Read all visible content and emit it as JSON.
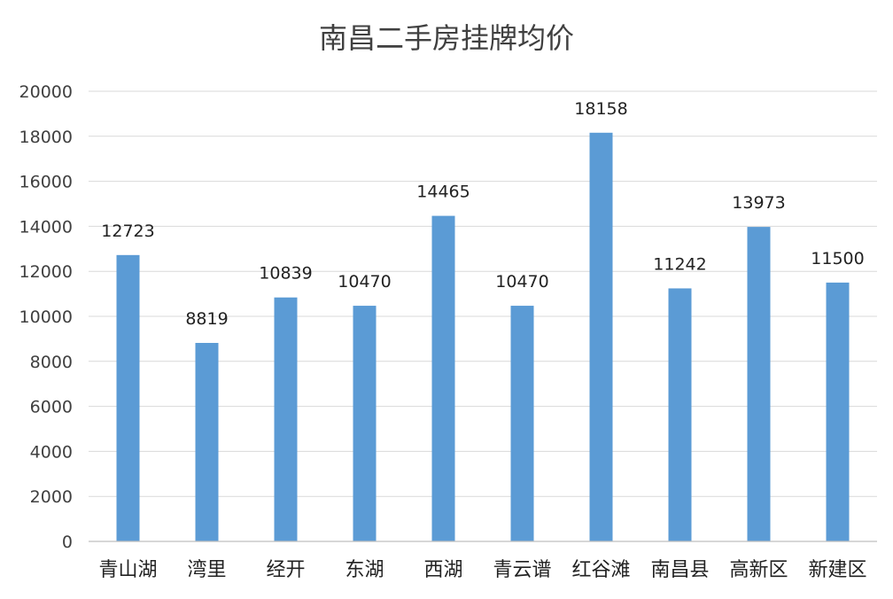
{
  "chart_data": {
    "type": "bar",
    "title": "南昌二手房挂牌均价",
    "xlabel": "",
    "ylabel": "",
    "categories": [
      "青山湖",
      "湾里",
      "经开",
      "东湖",
      "西湖",
      "青云谱",
      "红谷滩",
      "南昌县",
      "高新区",
      "新建区"
    ],
    "values": [
      12723,
      8819,
      10839,
      10470,
      14465,
      10470,
      18158,
      11242,
      13973,
      11500
    ],
    "ylim": [
      0,
      20000
    ],
    "yticks": [
      0,
      2000,
      4000,
      6000,
      8000,
      10000,
      12000,
      14000,
      16000,
      18000,
      20000
    ],
    "grid": true,
    "legend": "none",
    "bar_color": "#5b9bd5"
  }
}
